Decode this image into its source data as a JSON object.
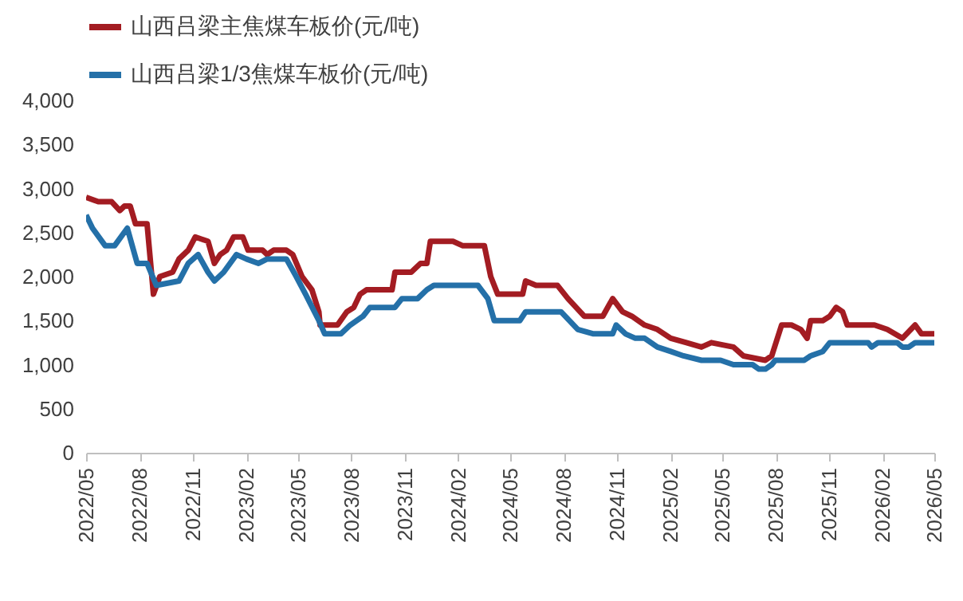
{
  "chart_data": {
    "type": "line",
    "legend": "top",
    "grid": false,
    "line_style": "solid",
    "marker": "none",
    "xlim": [
      "2022-05",
      "2026-05"
    ],
    "xticks": [
      {
        "value": "2022-05",
        "label": "2022/05"
      },
      {
        "value": "2022-08",
        "label": "2022/08"
      },
      {
        "value": "2022-11",
        "label": "2022/11"
      },
      {
        "value": "2023-02",
        "label": "2023/02"
      },
      {
        "value": "2023-05",
        "label": "2023/05"
      },
      {
        "value": "2023-08",
        "label": "2023/08"
      },
      {
        "value": "2023-11",
        "label": "2023/11"
      },
      {
        "value": "2024-02",
        "label": "2024/02"
      },
      {
        "value": "2024-05",
        "label": "2024/05"
      },
      {
        "value": "2024-08",
        "label": "2024/08"
      },
      {
        "value": "2024-11",
        "label": "2024/11"
      },
      {
        "value": "2025-02",
        "label": "2025/02"
      },
      {
        "value": "2025-05",
        "label": "2025/05"
      },
      {
        "value": "2025-08",
        "label": "2025/08"
      },
      {
        "value": "2025-11",
        "label": "2025/11"
      },
      {
        "value": "2026-02",
        "label": "2026/02"
      },
      {
        "value": "2026-05",
        "label": "2026/05"
      }
    ],
    "ylim": [
      0,
      4000
    ],
    "yticks": [
      {
        "value": 0,
        "label": "0"
      },
      {
        "value": 500,
        "label": "500"
      },
      {
        "value": 1000,
        "label": "1,000"
      },
      {
        "value": 1500,
        "label": "1,500"
      },
      {
        "value": 2000,
        "label": "2,000"
      },
      {
        "value": 2500,
        "label": "2,500"
      },
      {
        "value": 3000,
        "label": "3,000"
      },
      {
        "value": 3500,
        "label": "3,500"
      },
      {
        "value": 4000,
        "label": "4,000"
      }
    ],
    "series": [
      {
        "name": "山西吕梁主焦煤车板价(元/吨)",
        "color": "#a31c22",
        "x": [
          "2022-05-01",
          "2022-05-22",
          "2022-06-14",
          "2022-06-28",
          "2022-07-06",
          "2022-07-16",
          "2022-07-25",
          "2022-08-14",
          "2022-08-25",
          "2022-09-05",
          "2022-09-27",
          "2022-10-08",
          "2022-10-24",
          "2022-11-05",
          "2022-11-27",
          "2022-12-08",
          "2022-12-18",
          "2022-12-29",
          "2023-01-10",
          "2023-01-26",
          "2023-02-04",
          "2023-03-01",
          "2023-03-09",
          "2023-03-20",
          "2023-04-11",
          "2023-04-22",
          "2023-05-08",
          "2023-05-25",
          "2023-06-06",
          "2023-06-08",
          "2023-07-08",
          "2023-07-24",
          "2023-08-05",
          "2023-08-16",
          "2023-08-27",
          "2023-10-10",
          "2023-10-15",
          "2023-11-12",
          "2023-11-28",
          "2023-12-09",
          "2023-12-15",
          "2024-01-23",
          "2024-02-09",
          "2024-03-17",
          "2024-03-28",
          "2024-04-09",
          "2024-05-22",
          "2024-05-27",
          "2024-06-14",
          "2024-07-21",
          "2024-08-08",
          "2024-09-05",
          "2024-10-07",
          "2024-10-24",
          "2024-11-10",
          "2024-11-26",
          "2024-12-18",
          "2025-01-09",
          "2025-02-01",
          "2025-02-28",
          "2025-03-26",
          "2025-04-12",
          "2025-05-20",
          "2025-06-06",
          "2025-07-14",
          "2025-07-25",
          "2025-08-11",
          "2025-08-28",
          "2025-09-13",
          "2025-09-24",
          "2025-09-30",
          "2025-10-21",
          "2025-11-02",
          "2025-11-13",
          "2025-11-24",
          "2025-12-02",
          "2026-01-18",
          "2026-02-09",
          "2026-03-07",
          "2026-03-29",
          "2026-04-09",
          "2026-05-01"
        ],
        "values": [
          2900,
          2850,
          2850,
          2750,
          2800,
          2800,
          2600,
          2600,
          1800,
          2000,
          2050,
          2200,
          2300,
          2450,
          2400,
          2150,
          2250,
          2300,
          2450,
          2450,
          2300,
          2300,
          2250,
          2300,
          2300,
          2250,
          2000,
          1850,
          1600,
          1450,
          1450,
          1600,
          1650,
          1800,
          1850,
          1850,
          2050,
          2050,
          2150,
          2150,
          2400,
          2400,
          2350,
          2350,
          2000,
          1800,
          1800,
          1950,
          1900,
          1900,
          1750,
          1550,
          1550,
          1750,
          1600,
          1550,
          1450,
          1400,
          1300,
          1250,
          1200,
          1250,
          1200,
          1100,
          1050,
          1100,
          1450,
          1450,
          1400,
          1300,
          1500,
          1500,
          1550,
          1650,
          1600,
          1450,
          1450,
          1400,
          1300,
          1450,
          1350,
          1350
        ]
      },
      {
        "name": "山西吕梁1/3焦煤车板价(元/吨)",
        "color": "#2470a8",
        "x": [
          "2022-05-01",
          "2022-05-12",
          "2022-06-03",
          "2022-06-19",
          "2022-07-11",
          "2022-07-28",
          "2022-08-14",
          "2022-08-30",
          "2022-10-08",
          "2022-10-24",
          "2022-11-10",
          "2022-11-27",
          "2022-12-08",
          "2022-12-24",
          "2023-01-15",
          "2023-02-01",
          "2023-02-22",
          "2023-03-09",
          "2023-04-11",
          "2023-04-28",
          "2023-05-14",
          "2023-06-06",
          "2023-06-16",
          "2023-07-14",
          "2023-07-30",
          "2023-08-21",
          "2023-09-02",
          "2023-10-15",
          "2023-10-27",
          "2023-11-23",
          "2023-12-09",
          "2023-12-21",
          "2024-03-06",
          "2024-03-23",
          "2024-04-03",
          "2024-05-17",
          "2024-05-27",
          "2024-07-27",
          "2024-08-25",
          "2024-09-21",
          "2024-10-24",
          "2024-10-30",
          "2024-11-15",
          "2024-12-02",
          "2024-12-18",
          "2025-01-09",
          "2025-02-01",
          "2025-02-23",
          "2025-03-26",
          "2025-04-28",
          "2025-05-20",
          "2025-06-22",
          "2025-07-03",
          "2025-07-14",
          "2025-07-25",
          "2025-07-31",
          "2025-09-19",
          "2025-09-30",
          "2025-10-21",
          "2025-11-02",
          "2026-01-07",
          "2026-01-13",
          "2026-01-24",
          "2026-02-26",
          "2026-03-07",
          "2026-03-18",
          "2026-03-29",
          "2026-05-01"
        ],
        "values": [
          2700,
          2550,
          2350,
          2350,
          2550,
          2150,
          2150,
          1900,
          1950,
          2150,
          2250,
          2050,
          1950,
          2050,
          2250,
          2200,
          2150,
          2200,
          2200,
          2000,
          1800,
          1500,
          1350,
          1350,
          1450,
          1550,
          1650,
          1650,
          1750,
          1750,
          1850,
          1900,
          1900,
          1750,
          1500,
          1500,
          1600,
          1600,
          1400,
          1350,
          1350,
          1450,
          1350,
          1300,
          1300,
          1200,
          1150,
          1100,
          1050,
          1050,
          1000,
          1000,
          950,
          950,
          1000,
          1050,
          1050,
          1100,
          1150,
          1250,
          1250,
          1200,
          1250,
          1250,
          1200,
          1200,
          1250,
          1250
        ]
      }
    ]
  }
}
